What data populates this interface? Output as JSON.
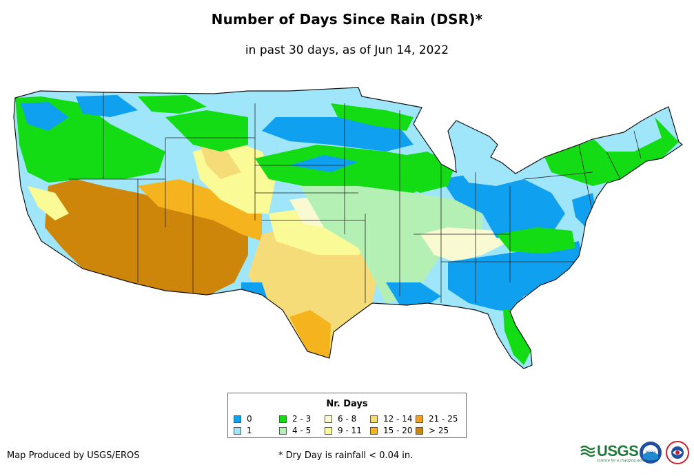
{
  "title": "Number of Days Since Rain (DSR)*",
  "subtitle": "in past 30 days, as of Jun 14, 2022",
  "legend": {
    "title": "Nr. Days",
    "items": [
      {
        "label": "0",
        "color": "#10a0f0"
      },
      {
        "label": "1",
        "color": "#a0e6fa"
      },
      {
        "label": "2 - 3",
        "color": "#14dc14"
      },
      {
        "label": "4 - 5",
        "color": "#b4f0b4"
      },
      {
        "label": "6 - 8",
        "color": "#fafad2"
      },
      {
        "label": "9 - 11",
        "color": "#fafa96"
      },
      {
        "label": "12 - 14",
        "color": "#f5dc78"
      },
      {
        "label": "15 - 20",
        "color": "#f5b41e"
      },
      {
        "label": "21 - 25",
        "color": "#eea028"
      },
      {
        "label": "> 25",
        "color": "#cd850a"
      }
    ]
  },
  "credit": "Map Produced by USGS/EROS",
  "footnote": "* Dry Day is rainfall < 0.04 in.",
  "logos": {
    "usgs": "USGS",
    "usgs_tagline": "science for a changing world",
    "noaa": "noaa",
    "noaa_icon": "noaa-logo-icon",
    "nws_icon": "nws-logo-icon"
  }
}
